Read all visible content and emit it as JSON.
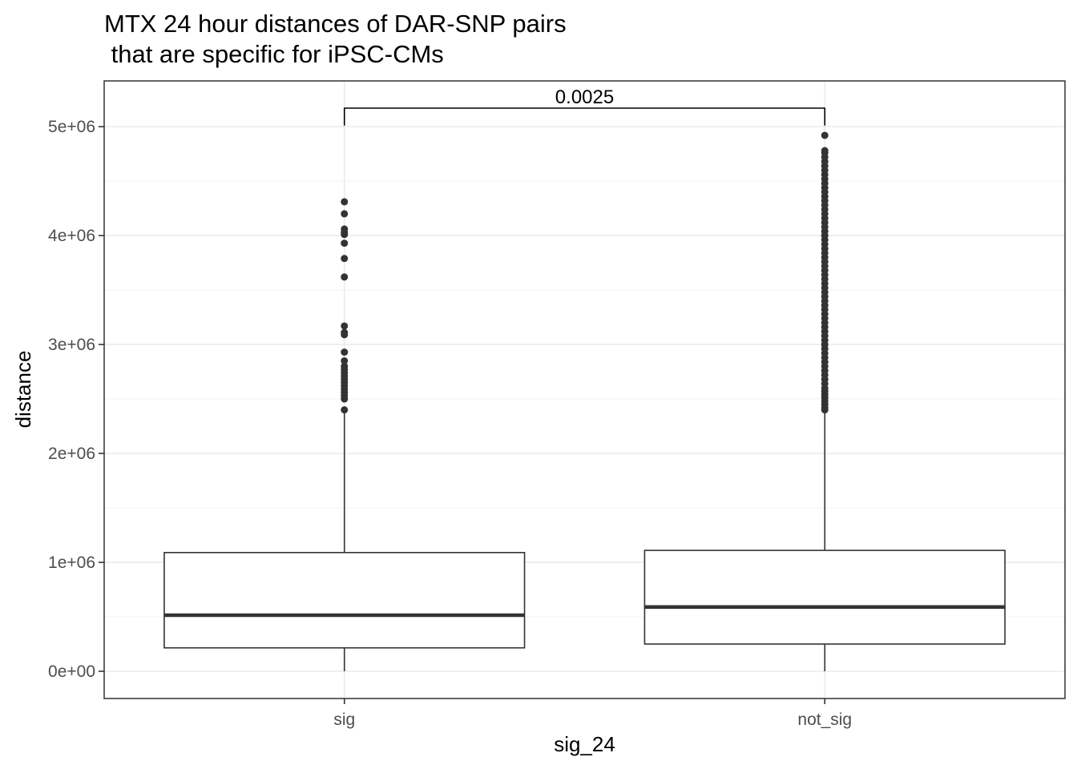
{
  "chart_data": {
    "type": "box",
    "title": "MTX 24 hour distances of DAR-SNP pairs\n that are specific for iPSC-CMs",
    "xlabel": "sig_24",
    "ylabel": "distance",
    "categories": [
      "sig",
      "not_sig"
    ],
    "ylim": [
      -250000,
      5420000
    ],
    "yticks": [
      0,
      1000000,
      2000000,
      3000000,
      4000000,
      5000000
    ],
    "ytick_labels": [
      "0e+00",
      "1e+06",
      "2e+06",
      "3e+06",
      "4e+06",
      "5e+06"
    ],
    "grid": true,
    "boxes": [
      {
        "category": "sig",
        "min": 0,
        "q1": 215000,
        "median": 515000,
        "q3": 1090000,
        "whisker_high": 2390000,
        "outliers": [
          2400000,
          2500000,
          2530000,
          2560000,
          2590000,
          2620000,
          2650000,
          2680000,
          2710000,
          2740000,
          2770000,
          2800000,
          2850000,
          2930000,
          3090000,
          3110000,
          3170000,
          3620000,
          3790000,
          3930000,
          4010000,
          4030000,
          4060000,
          4200000,
          4310000
        ]
      },
      {
        "category": "not_sig",
        "min": 0,
        "q1": 250000,
        "median": 590000,
        "q3": 1110000,
        "whisker_high": 2390000,
        "outliers": [
          2400000,
          2420000,
          2450000,
          2480000,
          2510000,
          2540000,
          2570000,
          2600000,
          2640000,
          2680000,
          2720000,
          2760000,
          2800000,
          2840000,
          2880000,
          2920000,
          2960000,
          3000000,
          3040000,
          3080000,
          3120000,
          3160000,
          3200000,
          3240000,
          3280000,
          3320000,
          3360000,
          3400000,
          3440000,
          3480000,
          3520000,
          3560000,
          3600000,
          3640000,
          3680000,
          3720000,
          3760000,
          3800000,
          3840000,
          3880000,
          3920000,
          3960000,
          4000000,
          4040000,
          4080000,
          4120000,
          4160000,
          4200000,
          4240000,
          4280000,
          4320000,
          4360000,
          4400000,
          4440000,
          4480000,
          4520000,
          4560000,
          4600000,
          4640000,
          4680000,
          4720000,
          4760000,
          4780000,
          4920000
        ]
      }
    ],
    "annotation": {
      "label": "0.0025",
      "from": "sig",
      "to": "not_sig",
      "y": 5170000,
      "tip": 5010000
    }
  }
}
